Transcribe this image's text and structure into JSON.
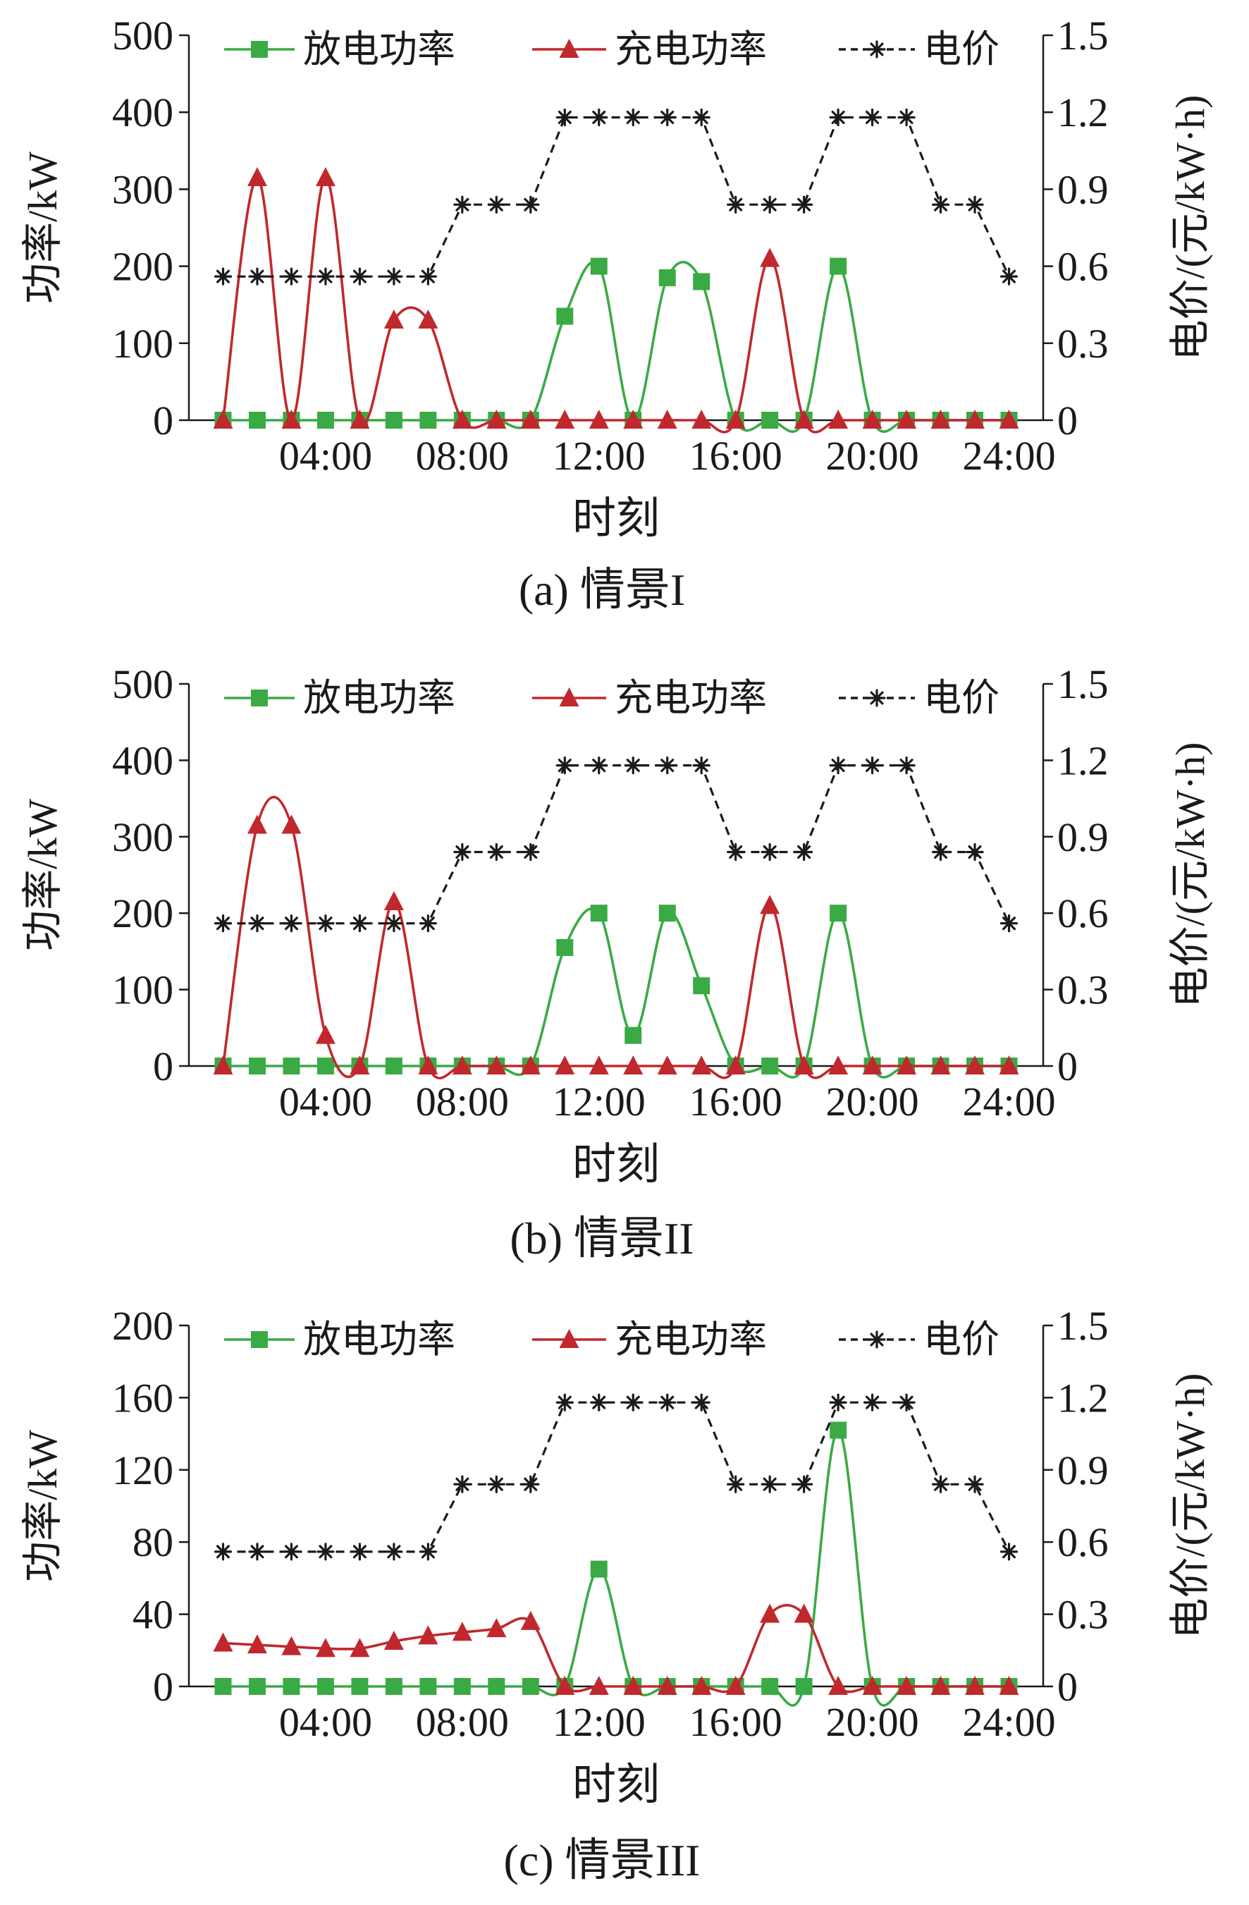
{
  "chart_data": [
    {
      "type": "line",
      "caption": "(a) 情景I",
      "xlabel": "时刻",
      "ylabel_left": "功率/kW",
      "ylabel_right": "电价/(元/kW·h)",
      "ylim_left": [
        0,
        500
      ],
      "ylim_right": [
        0,
        1.5
      ],
      "yticks_left": [
        "0",
        "100",
        "200",
        "300",
        "400",
        "500"
      ],
      "yticks_right": [
        "0",
        "0.3",
        "0.6",
        "0.9",
        "1.2",
        "1.5"
      ],
      "xticks": [
        "04:00",
        "08:00",
        "12:00",
        "16:00",
        "20:00",
        "24:00"
      ],
      "x_hours": [
        1,
        2,
        3,
        4,
        5,
        6,
        7,
        8,
        9,
        10,
        11,
        12,
        13,
        14,
        15,
        16,
        17,
        18,
        19,
        20,
        21,
        22,
        23,
        24
      ],
      "legend_position": "top",
      "grid": false,
      "series": [
        {
          "name": "放电功率",
          "axis": "left",
          "color": "#3aaa45",
          "marker": "square",
          "values": [
            0,
            0,
            0,
            0,
            0,
            0,
            0,
            0,
            0,
            0,
            135,
            200,
            0,
            185,
            180,
            0,
            0,
            0,
            200,
            0,
            0,
            0,
            0,
            0
          ]
        },
        {
          "name": "充电功率",
          "axis": "left",
          "color": "#c0282d",
          "marker": "triangle",
          "values": [
            0,
            315,
            0,
            315,
            0,
            130,
            130,
            0,
            0,
            0,
            0,
            0,
            0,
            0,
            0,
            0,
            210,
            0,
            0,
            0,
            0,
            0,
            0,
            0
          ]
        },
        {
          "name": "电价",
          "axis": "right",
          "color": "#1a1a1a",
          "marker": "asterisk",
          "dashed": true,
          "values": [
            0.56,
            0.56,
            0.56,
            0.56,
            0.56,
            0.56,
            0.56,
            0.84,
            0.84,
            0.84,
            1.18,
            1.18,
            1.18,
            1.18,
            1.18,
            0.84,
            0.84,
            0.84,
            1.18,
            1.18,
            1.18,
            0.84,
            0.84,
            0.56
          ]
        }
      ]
    },
    {
      "type": "line",
      "caption": "(b) 情景II",
      "xlabel": "时刻",
      "ylabel_left": "功率/kW",
      "ylabel_right": "电价/(元/kW·h)",
      "ylim_left": [
        0,
        500
      ],
      "ylim_right": [
        0,
        1.5
      ],
      "yticks_left": [
        "0",
        "100",
        "200",
        "300",
        "400",
        "500"
      ],
      "yticks_right": [
        "0",
        "0.3",
        "0.6",
        "0.9",
        "1.2",
        "1.5"
      ],
      "xticks": [
        "04:00",
        "08:00",
        "12:00",
        "16:00",
        "20:00",
        "24:00"
      ],
      "x_hours": [
        1,
        2,
        3,
        4,
        5,
        6,
        7,
        8,
        9,
        10,
        11,
        12,
        13,
        14,
        15,
        16,
        17,
        18,
        19,
        20,
        21,
        22,
        23,
        24
      ],
      "legend_position": "top",
      "grid": false,
      "series": [
        {
          "name": "放电功率",
          "axis": "left",
          "color": "#3aaa45",
          "marker": "square",
          "values": [
            0,
            0,
            0,
            0,
            0,
            0,
            0,
            0,
            0,
            0,
            155,
            200,
            40,
            200,
            105,
            0,
            0,
            0,
            200,
            0,
            0,
            0,
            0,
            0
          ]
        },
        {
          "name": "充电功率",
          "axis": "left",
          "color": "#c0282d",
          "marker": "triangle",
          "values": [
            0,
            315,
            315,
            40,
            0,
            215,
            0,
            0,
            0,
            0,
            0,
            0,
            0,
            0,
            0,
            0,
            210,
            0,
            0,
            0,
            0,
            0,
            0,
            0
          ]
        },
        {
          "name": "电价",
          "axis": "right",
          "color": "#1a1a1a",
          "marker": "asterisk",
          "dashed": true,
          "values": [
            0.56,
            0.56,
            0.56,
            0.56,
            0.56,
            0.56,
            0.56,
            0.84,
            0.84,
            0.84,
            1.18,
            1.18,
            1.18,
            1.18,
            1.18,
            0.84,
            0.84,
            0.84,
            1.18,
            1.18,
            1.18,
            0.84,
            0.84,
            0.56
          ]
        }
      ]
    },
    {
      "type": "line",
      "caption": "(c) 情景III",
      "xlabel": "时刻",
      "ylabel_left": "功率/kW",
      "ylabel_right": "电价/(元/kW·h)",
      "ylim_left": [
        0,
        200
      ],
      "ylim_right": [
        0,
        1.5
      ],
      "yticks_left": [
        "0",
        "40",
        "80",
        "120",
        "160",
        "200"
      ],
      "yticks_right": [
        "0",
        "0.3",
        "0.6",
        "0.9",
        "1.2",
        "1.5"
      ],
      "xticks": [
        "04:00",
        "08:00",
        "12:00",
        "16:00",
        "20:00",
        "24:00"
      ],
      "x_hours": [
        1,
        2,
        3,
        4,
        5,
        6,
        7,
        8,
        9,
        10,
        11,
        12,
        13,
        14,
        15,
        16,
        17,
        18,
        19,
        20,
        21,
        22,
        23,
        24
      ],
      "legend_position": "top",
      "grid": false,
      "series": [
        {
          "name": "放电功率",
          "axis": "left",
          "color": "#3aaa45",
          "marker": "square",
          "values": [
            0,
            0,
            0,
            0,
            0,
            0,
            0,
            0,
            0,
            0,
            0,
            65,
            0,
            0,
            0,
            0,
            0,
            0,
            142,
            0,
            0,
            0,
            0,
            0
          ]
        },
        {
          "name": "充电功率",
          "axis": "left",
          "color": "#c0282d",
          "marker": "triangle",
          "values": [
            24,
            23,
            22,
            21,
            21,
            25,
            28,
            30,
            32,
            36,
            0,
            0,
            0,
            0,
            0,
            0,
            40,
            40,
            0,
            0,
            0,
            0,
            0,
            0
          ]
        },
        {
          "name": "电价",
          "axis": "right",
          "color": "#1a1a1a",
          "marker": "asterisk",
          "dashed": true,
          "values": [
            0.56,
            0.56,
            0.56,
            0.56,
            0.56,
            0.56,
            0.56,
            0.84,
            0.84,
            0.84,
            1.18,
            1.18,
            1.18,
            1.18,
            1.18,
            0.84,
            0.84,
            0.84,
            1.18,
            1.18,
            1.18,
            0.84,
            0.84,
            0.56
          ]
        }
      ]
    }
  ]
}
